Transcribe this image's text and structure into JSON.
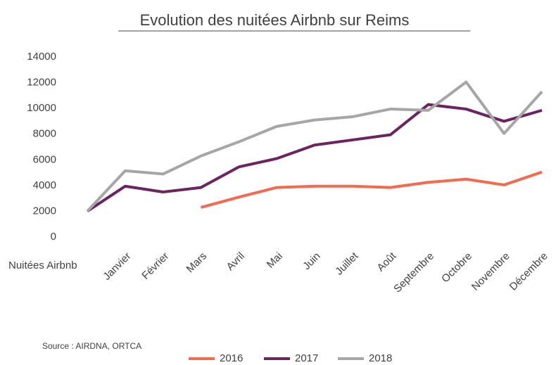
{
  "chart_data": {
    "type": "line",
    "title": "Evolution des nuitées Airbnb sur Reims",
    "categories": [
      "Nuitées Airbnb",
      "Janvier",
      "Février",
      "Mars",
      "Avril",
      "Mai",
      "Juin",
      "Juillet",
      "Août",
      "Septembre",
      "Octobre",
      "Novembre",
      "Décembre"
    ],
    "series": [
      {
        "name": "2016",
        "color": "#f26b4f",
        "values": [
          null,
          null,
          null,
          2300,
          3100,
          3850,
          3950,
          3950,
          3850,
          4250,
          4500,
          4050,
          5050
        ]
      },
      {
        "name": "2017",
        "color": "#6b2460",
        "values": [
          2000,
          3950,
          3500,
          3850,
          5450,
          6100,
          7150,
          7550,
          7950,
          10300,
          9950,
          9000,
          9850
        ]
      },
      {
        "name": "2018",
        "color": "#a6a6a6",
        "values": [
          2000,
          5150,
          4900,
          6300,
          7400,
          8600,
          9100,
          9350,
          9950,
          9850,
          12050,
          8050,
          11300
        ]
      }
    ],
    "ylim": [
      0,
      14000
    ],
    "yticks": [
      0,
      2000,
      4000,
      6000,
      8000,
      10000,
      12000,
      14000
    ],
    "grid": false,
    "legend": "bottom",
    "source": "Source : AIRDNA, ORTCA"
  }
}
